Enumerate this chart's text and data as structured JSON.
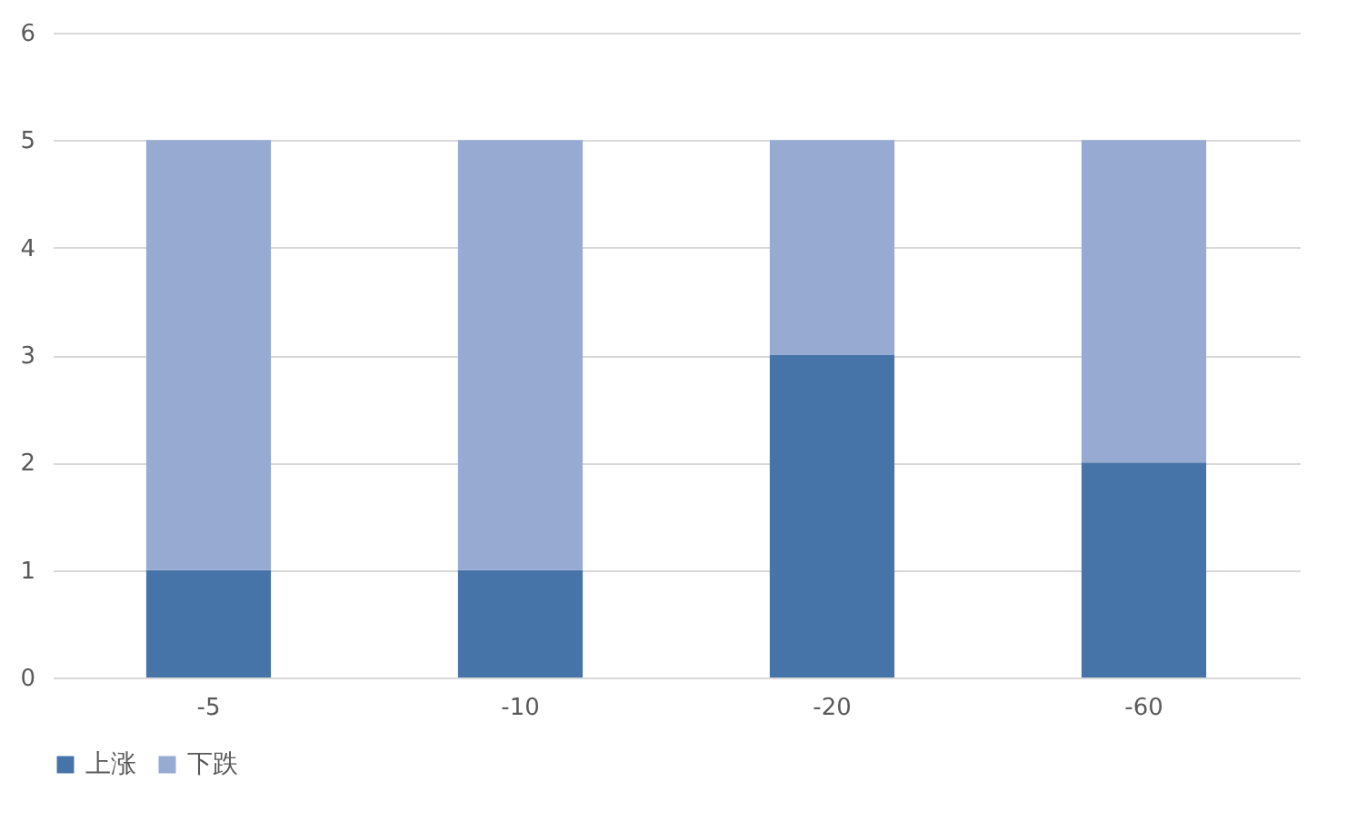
{
  "chart_data": {
    "type": "bar",
    "stacked": true,
    "categories": [
      "-5",
      "-10",
      "-20",
      "-60"
    ],
    "series": [
      {
        "name": "上涨",
        "color": "#4674a8",
        "values": [
          1,
          1,
          3,
          2
        ]
      },
      {
        "name": "下跌",
        "color": "#96aad2",
        "values": [
          4,
          4,
          2,
          3
        ]
      }
    ],
    "ylim": [
      0,
      6
    ],
    "yticks": [
      0,
      1,
      2,
      3,
      4,
      5,
      6
    ],
    "grid": "y",
    "legend": "bottom"
  }
}
